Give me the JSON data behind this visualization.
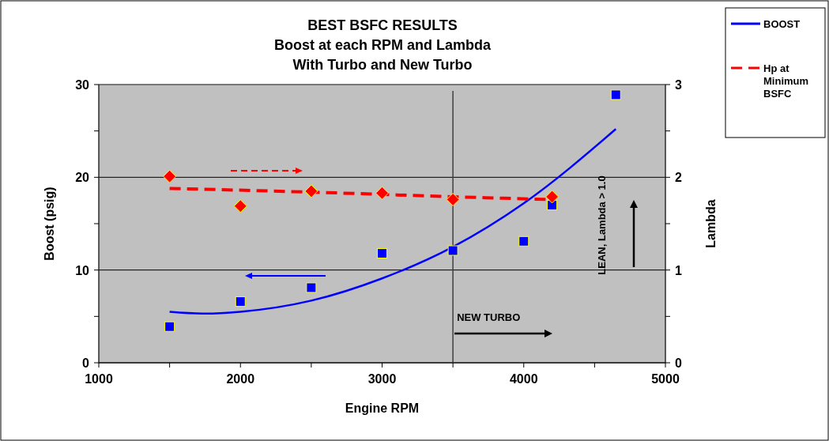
{
  "chart_data": {
    "type": "line",
    "title": "BEST BSFC RESULTS\nBoost at each RPM and Lambda\nWith Turbo and New Turbo",
    "xlabel": "Engine RPM",
    "ylabel": "Boost (psig)",
    "y2label": "Lambda",
    "xlim": [
      1000,
      5000
    ],
    "xticks": [
      1000,
      {
        "value": 1500,
        "label": null
      },
      2000,
      {
        "value": 2500,
        "label": null
      },
      3000,
      {
        "value": 3500,
        "label": null
      },
      4000,
      {
        "value": 4500,
        "label": null
      },
      5000
    ],
    "ylim": [
      0,
      30
    ],
    "yticks": [
      0,
      {
        "value": 5,
        "label": null
      },
      10,
      {
        "value": 15,
        "label": null
      },
      20,
      {
        "value": 25,
        "label": null
      },
      30
    ],
    "y2lim": [
      0,
      3
    ],
    "y2ticks": [
      0,
      {
        "value": 0.5,
        "label": null
      },
      1,
      {
        "value": 1.5,
        "label": null
      },
      2,
      {
        "value": 2.5,
        "label": null
      },
      3
    ],
    "grid": "y",
    "legend": "top right",
    "series": [
      {
        "name": "BOOST",
        "color": "#0000ff",
        "line_style": "solid",
        "marker": "none",
        "x": [
          1500,
          1750,
          2000,
          2500,
          3000,
          3500,
          4000,
          4650
        ],
        "values": [
          5.5,
          5.3,
          5.5,
          6.7,
          9.1,
          12.5,
          17.2,
          25.2
        ]
      },
      {
        "type": "scatter",
        "color": "#0000ff",
        "marker": "square",
        "x": [
          1500,
          2000,
          2500,
          3000,
          3500,
          4000,
          4200,
          4650
        ],
        "values": [
          3.9,
          6.6,
          8.1,
          11.8,
          12.1,
          13.1,
          17.0,
          28.9
        ]
      },
      {
        "name": "Hp at Minimum BSFC",
        "axis": "y2",
        "color": "#ff0000",
        "line_style": "dashed",
        "marker": "none",
        "x": [
          1500,
          2500,
          3500,
          4200
        ],
        "values": [
          1.88,
          1.84,
          1.79,
          1.76
        ]
      },
      {
        "type": "scatter",
        "axis": "y2",
        "color": "#ff0000",
        "marker": "diamond",
        "x": [
          1500,
          2000,
          2500,
          3000,
          3500,
          4200
        ],
        "values": [
          2.01,
          1.69,
          1.85,
          1.83,
          1.76,
          1.79
        ]
      }
    ],
    "ref_lines": [
      {
        "axis": "x",
        "value": 3500,
        "label": "NEW TURBO",
        "color": "#404040"
      }
    ],
    "annotations": [
      "LEAN, Lambda > 1.0"
    ]
  }
}
